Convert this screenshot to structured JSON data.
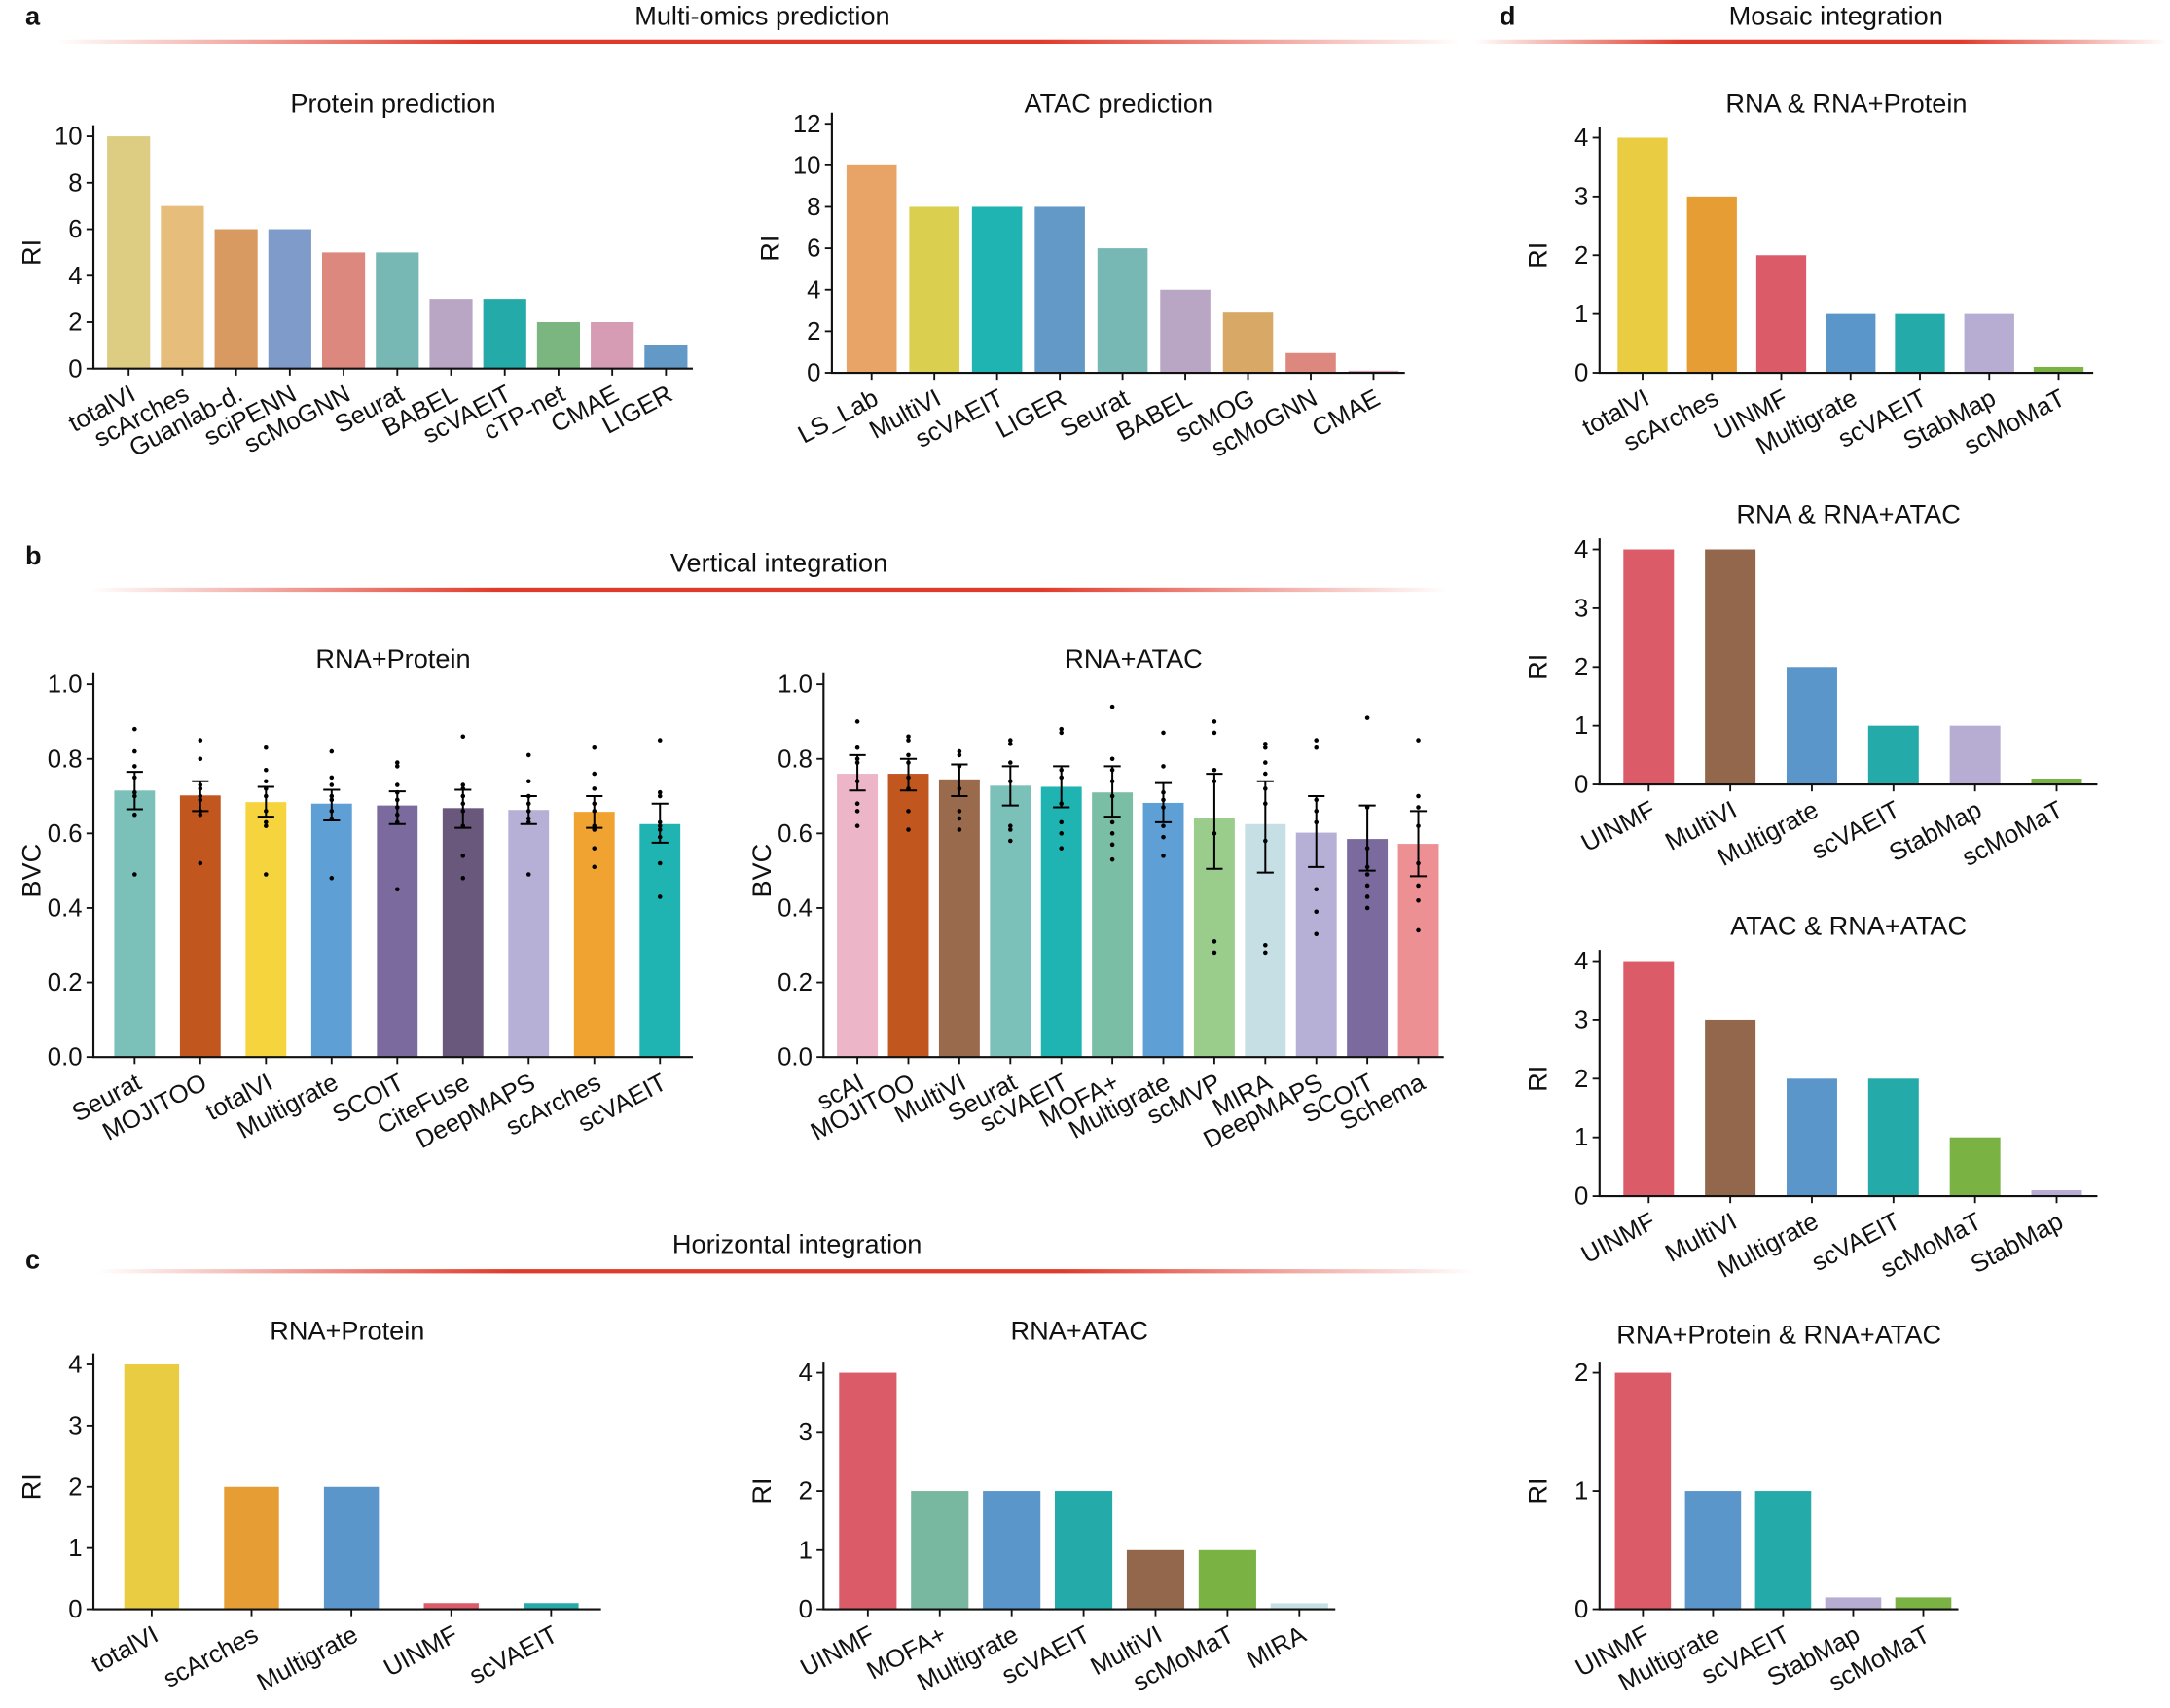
{
  "sections": [
    {
      "letter": "a",
      "title": "Multi-omics prediction"
    },
    {
      "letter": "b",
      "title": "Vertical integration"
    },
    {
      "letter": "c",
      "title": "Horizontal integration"
    },
    {
      "letter": "d",
      "title": "Mosaic integration"
    }
  ],
  "accent_color": "#e03a2a",
  "chart_data": [
    {
      "id": "a1",
      "section": "a",
      "type": "bar",
      "title": "Protein prediction",
      "xlabel": "",
      "ylabel": "RI",
      "ylim": [
        0,
        10
      ],
      "yticks": [
        0,
        2,
        4,
        6,
        8,
        10
      ],
      "ytick_labels": [
        "0",
        "2",
        "4",
        "6",
        "8",
        "10"
      ],
      "categories": [
        "totalVI",
        "scArches",
        "Guanlab-d.",
        "sciPENN",
        "scMoGNN",
        "Seurat",
        "BABEL",
        "scVAEIT",
        "cTP-net",
        "CMAE",
        "LIGER"
      ],
      "values": [
        10,
        7,
        6,
        6,
        5,
        5,
        3,
        3,
        2,
        2,
        1
      ],
      "colors": [
        "#dccd82",
        "#e6bd7a",
        "#d99a62",
        "#7f9bc9",
        "#dd887e",
        "#77b8b4",
        "#b8a6c4",
        "#24aaa9",
        "#7bb580",
        "#d59cb4",
        "#6399c7"
      ]
    },
    {
      "id": "a2",
      "section": "a",
      "type": "bar",
      "title": "ATAC prediction",
      "xlabel": "",
      "ylabel": "RI",
      "ylim": [
        0,
        12
      ],
      "yticks": [
        0,
        2,
        4,
        6,
        8,
        10,
        12
      ],
      "ytick_labels": [
        "0",
        "2",
        "4",
        "6",
        "8",
        "10",
        "12"
      ],
      "categories": [
        "LS_Lab",
        "MultiVI",
        "scVAEIT",
        "LIGER",
        "Seurat",
        "BABEL",
        "scMOG",
        "scMoGNN",
        "CMAE"
      ],
      "values": [
        10,
        8,
        8,
        8,
        6,
        4,
        2.9,
        0.95,
        0.1
      ],
      "colors": [
        "#e8a466",
        "#dbcf4f",
        "#1fb3b2",
        "#6399c7",
        "#77b8b4",
        "#b8a6c4",
        "#d8a966",
        "#dd887e",
        "#d59cb4"
      ]
    },
    {
      "id": "b1",
      "section": "b",
      "type": "bar",
      "title": "RNA+Protein",
      "xlabel": "",
      "ylabel": "BVC",
      "ylim": [
        0,
        1
      ],
      "yticks": [
        0,
        0.2,
        0.4,
        0.6,
        0.8,
        1.0
      ],
      "ytick_labels": [
        "0.0",
        "0.2",
        "0.4",
        "0.6",
        "0.8",
        "1.0"
      ],
      "categories": [
        "Seurat",
        "MOJITOO",
        "totalVI",
        "Multigrate",
        "SCOIT",
        "CiteFuse",
        "DeepMAPS",
        "scArches",
        "scVAEIT"
      ],
      "values": [
        0.715,
        0.702,
        0.684,
        0.68,
        0.675,
        0.668,
        0.663,
        0.658,
        0.625
      ],
      "errors": [
        [
          0.665,
          0.765
        ],
        [
          0.66,
          0.74
        ],
        [
          0.645,
          0.725
        ],
        [
          0.635,
          0.717
        ],
        [
          0.625,
          0.713
        ],
        [
          0.615,
          0.717
        ],
        [
          0.625,
          0.7
        ],
        [
          0.615,
          0.7
        ],
        [
          0.575,
          0.68
        ]
      ],
      "points": [
        [
          0.88,
          0.82,
          0.78,
          0.75,
          0.71,
          0.7,
          0.65,
          0.49
        ],
        [
          0.85,
          0.8,
          0.73,
          0.72,
          0.7,
          0.69,
          0.66,
          0.65,
          0.52
        ],
        [
          0.83,
          0.77,
          0.74,
          0.72,
          0.7,
          0.66,
          0.63,
          0.62,
          0.49
        ],
        [
          0.82,
          0.75,
          0.73,
          0.7,
          0.69,
          0.66,
          0.64,
          0.48
        ],
        [
          0.79,
          0.78,
          0.73,
          0.71,
          0.69,
          0.67,
          0.65,
          0.63,
          0.45
        ],
        [
          0.86,
          0.73,
          0.72,
          0.7,
          0.68,
          0.66,
          0.62,
          0.54,
          0.48
        ],
        [
          0.81,
          0.74,
          0.7,
          0.68,
          0.66,
          0.64,
          0.63,
          0.49
        ],
        [
          0.83,
          0.76,
          0.72,
          0.68,
          0.66,
          0.62,
          0.61,
          0.56,
          0.51
        ],
        [
          0.85,
          0.71,
          0.7,
          0.63,
          0.62,
          0.61,
          0.59,
          0.52,
          0.43
        ]
      ],
      "colors": [
        "#7bc0b9",
        "#c2561f",
        "#f5d43d",
        "#5e9fd6",
        "#7b6a9e",
        "#6a577c",
        "#b6afd6",
        "#f0a330",
        "#1fb3b2"
      ]
    },
    {
      "id": "b2",
      "section": "b",
      "type": "bar",
      "title": "RNA+ATAC",
      "xlabel": "",
      "ylabel": "BVC",
      "ylim": [
        0,
        1
      ],
      "yticks": [
        0,
        0.2,
        0.4,
        0.6,
        0.8,
        1.0
      ],
      "ytick_labels": [
        "0.0",
        "0.2",
        "0.4",
        "0.6",
        "0.8",
        "1.0"
      ],
      "categories": [
        "scAI",
        "MOJITOO",
        "MultiVI",
        "Seurat",
        "scVAEIT",
        "MOFA+",
        "Multigrate",
        "scMVP",
        "MIRA",
        "DeepMAPS",
        "SCOIT",
        "Schema"
      ],
      "values": [
        0.76,
        0.76,
        0.745,
        0.728,
        0.725,
        0.71,
        0.682,
        0.64,
        0.625,
        0.602,
        0.585,
        0.572
      ],
      "errors": [
        [
          0.715,
          0.81
        ],
        [
          0.715,
          0.8
        ],
        [
          0.7,
          0.785
        ],
        [
          0.675,
          0.78
        ],
        [
          0.67,
          0.78
        ],
        [
          0.645,
          0.78
        ],
        [
          0.63,
          0.735
        ],
        [
          0.505,
          0.76
        ],
        [
          0.495,
          0.74
        ],
        [
          0.51,
          0.7
        ],
        [
          0.5,
          0.675
        ],
        [
          0.485,
          0.66
        ]
      ],
      "points": [
        [
          0.9,
          0.83,
          0.8,
          0.79,
          0.74,
          0.68,
          0.66,
          0.62
        ],
        [
          0.86,
          0.85,
          0.81,
          0.79,
          0.75,
          0.72,
          0.66,
          0.61
        ],
        [
          0.82,
          0.81,
          0.78,
          0.72,
          0.66,
          0.64,
          0.61
        ],
        [
          0.85,
          0.84,
          0.79,
          0.74,
          0.62,
          0.61,
          0.58
        ],
        [
          0.88,
          0.87,
          0.77,
          0.75,
          0.68,
          0.63,
          0.6,
          0.56
        ],
        [
          0.94,
          0.8,
          0.77,
          0.74,
          0.7,
          0.63,
          0.6,
          0.57,
          0.53
        ],
        [
          0.87,
          0.78,
          0.71,
          0.69,
          0.67,
          0.62,
          0.59,
          0.54
        ],
        [
          0.9,
          0.87,
          0.77,
          0.74,
          0.6,
          0.31,
          0.28
        ],
        [
          0.84,
          0.83,
          0.79,
          0.76,
          0.72,
          0.68,
          0.58,
          0.3,
          0.28
        ],
        [
          0.85,
          0.83,
          0.69,
          0.66,
          0.63,
          0.45,
          0.39,
          0.33
        ],
        [
          0.91,
          0.67,
          0.56,
          0.51,
          0.49,
          0.46,
          0.43,
          0.4
        ],
        [
          0.85,
          0.7,
          0.67,
          0.62,
          0.52,
          0.46,
          0.42,
          0.34
        ]
      ],
      "colors": [
        "#ecb5c8",
        "#c2561f",
        "#9a6a4c",
        "#7bc0b9",
        "#1fb3b2",
        "#7bbea6",
        "#5e9fd6",
        "#9acd8c",
        "#c5dfe4",
        "#b6afd6",
        "#7b6a9e",
        "#ec9093"
      ]
    },
    {
      "id": "c1",
      "section": "c",
      "type": "bar",
      "title": "RNA+Protein",
      "xlabel": "",
      "ylabel": "RI",
      "ylim": [
        0,
        4
      ],
      "yticks": [
        0,
        1,
        2,
        3,
        4
      ],
      "ytick_labels": [
        "0",
        "1",
        "2",
        "3",
        "4"
      ],
      "categories": [
        "totalVI",
        "scArches",
        "Multigrate",
        "UINMF",
        "scVAEIT"
      ],
      "values": [
        4,
        2,
        2,
        0.1,
        0.1
      ],
      "colors": [
        "#e9cc41",
        "#e69e34",
        "#5b96ca",
        "#db5b68",
        "#24aaa9"
      ]
    },
    {
      "id": "c2",
      "section": "c",
      "type": "bar",
      "title": "RNA+ATAC",
      "xlabel": "",
      "ylabel": "RI",
      "ylim": [
        0,
        4
      ],
      "yticks": [
        0,
        1,
        2,
        3,
        4
      ],
      "ytick_labels": [
        "0",
        "1",
        "2",
        "3",
        "4"
      ],
      "categories": [
        "UINMF",
        "MOFA+",
        "Multigrate",
        "scVAEIT",
        "MultiVI",
        "scMoMaT",
        "MIRA"
      ],
      "values": [
        4,
        2,
        2,
        2,
        1,
        1,
        0.1
      ],
      "colors": [
        "#db5b68",
        "#79b8a0",
        "#5b96ca",
        "#24aaa9",
        "#93674b",
        "#7ab343",
        "#c5dfe4"
      ]
    },
    {
      "id": "d1",
      "section": "d",
      "type": "bar",
      "title": "RNA & RNA+Protein",
      "xlabel": "",
      "ylabel": "RI",
      "ylim": [
        0,
        4
      ],
      "yticks": [
        0,
        1,
        2,
        3,
        4
      ],
      "ytick_labels": [
        "0",
        "1",
        "2",
        "3",
        "4"
      ],
      "categories": [
        "totalVI",
        "scArches",
        "UINMF",
        "Multigrate",
        "scVAEIT",
        "StabMap",
        "scMoMaT"
      ],
      "values": [
        4,
        3,
        2,
        1,
        1,
        1,
        0.1
      ],
      "colors": [
        "#e9cc41",
        "#e69e34",
        "#db5b68",
        "#5b96ca",
        "#24aaa9",
        "#b7acd2",
        "#7ab343"
      ]
    },
    {
      "id": "d2",
      "section": "d",
      "type": "bar",
      "title": "RNA & RNA+ATAC",
      "xlabel": "",
      "ylabel": "RI",
      "ylim": [
        0,
        4
      ],
      "yticks": [
        0,
        1,
        2,
        3,
        4
      ],
      "ytick_labels": [
        "0",
        "1",
        "2",
        "3",
        "4"
      ],
      "categories": [
        "UINMF",
        "MultiVI",
        "Multigrate",
        "scVAEIT",
        "StabMap",
        "scMoMaT"
      ],
      "values": [
        4,
        4,
        2,
        1,
        1,
        0.1
      ],
      "colors": [
        "#db5b68",
        "#93674b",
        "#5b96ca",
        "#24aaa9",
        "#b7acd2",
        "#7ab343"
      ]
    },
    {
      "id": "d3",
      "section": "d",
      "type": "bar",
      "title": "ATAC & RNA+ATAC",
      "xlabel": "",
      "ylabel": "RI",
      "ylim": [
        0,
        4
      ],
      "yticks": [
        0,
        1,
        2,
        3,
        4
      ],
      "ytick_labels": [
        "0",
        "1",
        "2",
        "3",
        "4"
      ],
      "categories": [
        "UINMF",
        "MultiVI",
        "Multigrate",
        "scVAEIT",
        "scMoMaT",
        "StabMap"
      ],
      "values": [
        4,
        3,
        2,
        2,
        1,
        0.1
      ],
      "colors": [
        "#db5b68",
        "#93674b",
        "#5b96ca",
        "#24aaa9",
        "#7ab343",
        "#b7acd2"
      ]
    },
    {
      "id": "d4",
      "section": "d",
      "type": "bar",
      "title": "RNA+Protein & RNA+ATAC",
      "xlabel": "",
      "ylabel": "RI",
      "ylim": [
        0,
        2
      ],
      "yticks": [
        0,
        1,
        2
      ],
      "ytick_labels": [
        "0",
        "1",
        "2"
      ],
      "categories": [
        "UINMF",
        "Multigrate",
        "scVAEIT",
        "StabMap",
        "scMoMaT"
      ],
      "values": [
        2,
        1,
        1,
        0.1,
        0.1
      ],
      "colors": [
        "#db5b68",
        "#5b96ca",
        "#24aaa9",
        "#b7acd2",
        "#7ab343"
      ]
    }
  ]
}
